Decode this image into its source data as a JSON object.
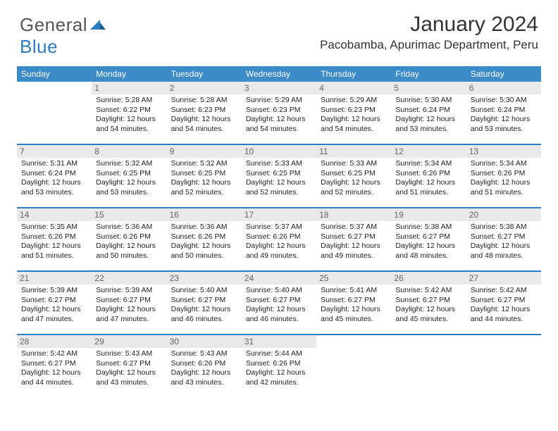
{
  "brand": {
    "part1": "General",
    "part2": "Blue"
  },
  "header": {
    "title": "January 2024",
    "location": "Pacobamba, Apurimac Department, Peru"
  },
  "colors": {
    "header_bg": "#3b8bc9",
    "header_text": "#ffffff",
    "rule": "#2f7bbf",
    "daynum_bg": "#e9e9e9",
    "daynum_text": "#666666",
    "body_text": "#222222"
  },
  "weekdays": [
    "Sunday",
    "Monday",
    "Tuesday",
    "Wednesday",
    "Thursday",
    "Friday",
    "Saturday"
  ],
  "weeks": [
    [
      null,
      {
        "n": "1",
        "sr": "5:28 AM",
        "ss": "6:22 PM",
        "dl": "12 hours and 54 minutes."
      },
      {
        "n": "2",
        "sr": "5:28 AM",
        "ss": "6:23 PM",
        "dl": "12 hours and 54 minutes."
      },
      {
        "n": "3",
        "sr": "5:29 AM",
        "ss": "6:23 PM",
        "dl": "12 hours and 54 minutes."
      },
      {
        "n": "4",
        "sr": "5:29 AM",
        "ss": "6:23 PM",
        "dl": "12 hours and 54 minutes."
      },
      {
        "n": "5",
        "sr": "5:30 AM",
        "ss": "6:24 PM",
        "dl": "12 hours and 53 minutes."
      },
      {
        "n": "6",
        "sr": "5:30 AM",
        "ss": "6:24 PM",
        "dl": "12 hours and 53 minutes."
      }
    ],
    [
      {
        "n": "7",
        "sr": "5:31 AM",
        "ss": "6:24 PM",
        "dl": "12 hours and 53 minutes."
      },
      {
        "n": "8",
        "sr": "5:32 AM",
        "ss": "6:25 PM",
        "dl": "12 hours and 53 minutes."
      },
      {
        "n": "9",
        "sr": "5:32 AM",
        "ss": "6:25 PM",
        "dl": "12 hours and 52 minutes."
      },
      {
        "n": "10",
        "sr": "5:33 AM",
        "ss": "6:25 PM",
        "dl": "12 hours and 52 minutes."
      },
      {
        "n": "11",
        "sr": "5:33 AM",
        "ss": "6:25 PM",
        "dl": "12 hours and 52 minutes."
      },
      {
        "n": "12",
        "sr": "5:34 AM",
        "ss": "6:26 PM",
        "dl": "12 hours and 51 minutes."
      },
      {
        "n": "13",
        "sr": "5:34 AM",
        "ss": "6:26 PM",
        "dl": "12 hours and 51 minutes."
      }
    ],
    [
      {
        "n": "14",
        "sr": "5:35 AM",
        "ss": "6:26 PM",
        "dl": "12 hours and 51 minutes."
      },
      {
        "n": "15",
        "sr": "5:36 AM",
        "ss": "6:26 PM",
        "dl": "12 hours and 50 minutes."
      },
      {
        "n": "16",
        "sr": "5:36 AM",
        "ss": "6:26 PM",
        "dl": "12 hours and 50 minutes."
      },
      {
        "n": "17",
        "sr": "5:37 AM",
        "ss": "6:26 PM",
        "dl": "12 hours and 49 minutes."
      },
      {
        "n": "18",
        "sr": "5:37 AM",
        "ss": "6:27 PM",
        "dl": "12 hours and 49 minutes."
      },
      {
        "n": "19",
        "sr": "5:38 AM",
        "ss": "6:27 PM",
        "dl": "12 hours and 48 minutes."
      },
      {
        "n": "20",
        "sr": "5:38 AM",
        "ss": "6:27 PM",
        "dl": "12 hours and 48 minutes."
      }
    ],
    [
      {
        "n": "21",
        "sr": "5:39 AM",
        "ss": "6:27 PM",
        "dl": "12 hours and 47 minutes."
      },
      {
        "n": "22",
        "sr": "5:39 AM",
        "ss": "6:27 PM",
        "dl": "12 hours and 47 minutes."
      },
      {
        "n": "23",
        "sr": "5:40 AM",
        "ss": "6:27 PM",
        "dl": "12 hours and 46 minutes."
      },
      {
        "n": "24",
        "sr": "5:40 AM",
        "ss": "6:27 PM",
        "dl": "12 hours and 46 minutes."
      },
      {
        "n": "25",
        "sr": "5:41 AM",
        "ss": "6:27 PM",
        "dl": "12 hours and 45 minutes."
      },
      {
        "n": "26",
        "sr": "5:42 AM",
        "ss": "6:27 PM",
        "dl": "12 hours and 45 minutes."
      },
      {
        "n": "27",
        "sr": "5:42 AM",
        "ss": "6:27 PM",
        "dl": "12 hours and 44 minutes."
      }
    ],
    [
      {
        "n": "28",
        "sr": "5:42 AM",
        "ss": "6:27 PM",
        "dl": "12 hours and 44 minutes."
      },
      {
        "n": "29",
        "sr": "5:43 AM",
        "ss": "6:27 PM",
        "dl": "12 hours and 43 minutes."
      },
      {
        "n": "30",
        "sr": "5:43 AM",
        "ss": "6:26 PM",
        "dl": "12 hours and 43 minutes."
      },
      {
        "n": "31",
        "sr": "5:44 AM",
        "ss": "6:26 PM",
        "dl": "12 hours and 42 minutes."
      },
      null,
      null,
      null
    ]
  ],
  "labels": {
    "sunrise": "Sunrise: ",
    "sunset": "Sunset: ",
    "daylight": "Daylight: "
  }
}
